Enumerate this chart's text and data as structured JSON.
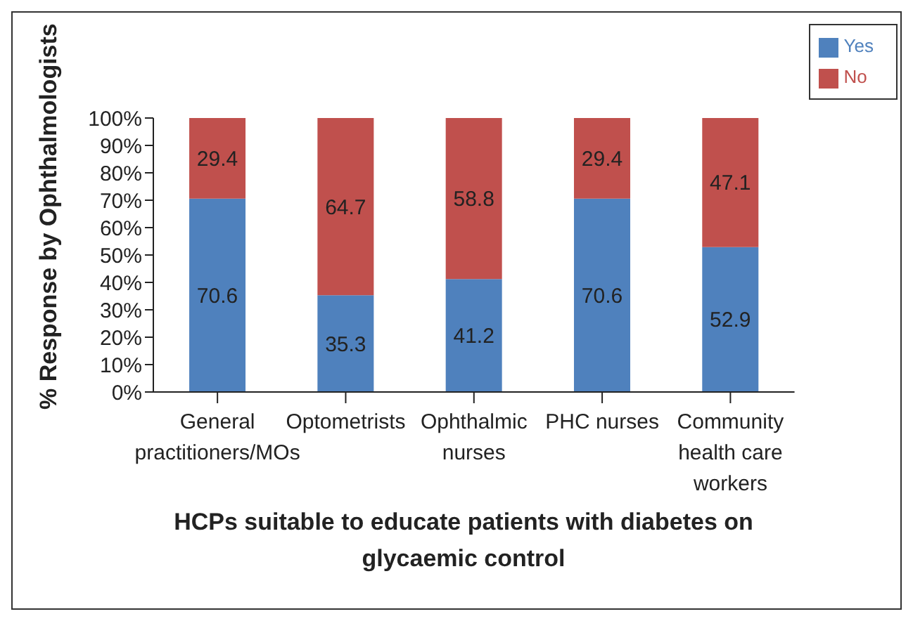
{
  "chart_data": {
    "type": "bar",
    "stacked": true,
    "xlabel": "HCPs suitable to educate patients with diabetes on glycaemic control",
    "ylabel": "% Response by Ophthalmologists",
    "categories": [
      "General practitioners/MOs",
      "Optometrists",
      "Ophthalmic nurses",
      "PHC nurses",
      "Community health care workers"
    ],
    "series": [
      {
        "name": "Yes",
        "color": "#4f81bd",
        "values": [
          70.6,
          35.3,
          41.2,
          70.6,
          52.9
        ]
      },
      {
        "name": "No",
        "color": "#c0504d",
        "values": [
          29.4,
          64.7,
          58.8,
          29.4,
          47.1
        ]
      }
    ],
    "ylim": [
      0,
      100
    ],
    "yticks": [
      {
        "value": 0,
        "label": "0%"
      },
      {
        "value": 10,
        "label": "10%"
      },
      {
        "value": 20,
        "label": "20%"
      },
      {
        "value": 30,
        "label": "30%"
      },
      {
        "value": 40,
        "label": "40%"
      },
      {
        "value": 50,
        "label": "50%"
      },
      {
        "value": 60,
        "label": "60%"
      },
      {
        "value": 70,
        "label": "70%"
      },
      {
        "value": 80,
        "label": "80%"
      },
      {
        "value": 90,
        "label": "90%"
      },
      {
        "value": 100,
        "label": "100%"
      }
    ],
    "data_labels": true,
    "legend": "top right",
    "grid": false
  }
}
